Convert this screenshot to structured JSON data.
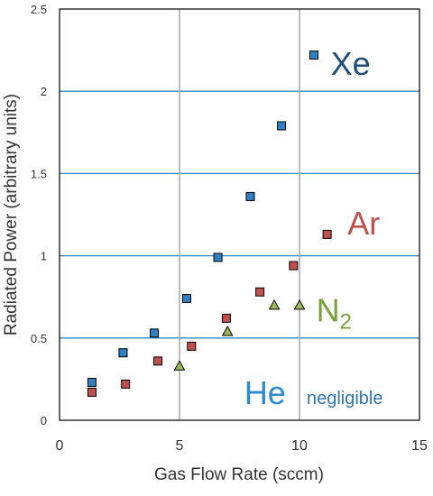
{
  "chart_data": {
    "type": "scatter",
    "xlabel": "Gas Flow Rate (sccm)",
    "ylabel": "Radiated Power (arbitrary units)",
    "xlim": [
      0,
      15
    ],
    "ylim": [
      0,
      2.5
    ],
    "x_ticks": [
      0,
      5,
      10,
      15
    ],
    "y_ticks": [
      0,
      0.5,
      1,
      1.5,
      2,
      2.5
    ],
    "x_tick_labels": [
      "0",
      "5",
      "10",
      "15"
    ],
    "y_tick_labels": [
      "0",
      "0.5",
      "1",
      "1.5",
      "2",
      "2.5"
    ],
    "vertical_gridlines_at": [
      5,
      10
    ],
    "horizontal_gridlines_at": [
      0.5,
      1,
      1.5,
      2
    ],
    "series": [
      {
        "name": "Xe",
        "marker": "square",
        "color": "#2f7fc1",
        "label_color": "#1f4e79",
        "label_at": [
          11.3,
          2.1
        ],
        "points": [
          [
            1.35,
            0.23
          ],
          [
            2.65,
            0.41
          ],
          [
            3.95,
            0.53
          ],
          [
            5.3,
            0.74
          ],
          [
            6.6,
            0.99
          ],
          [
            7.95,
            1.36
          ],
          [
            9.25,
            1.79
          ],
          [
            10.6,
            2.22
          ]
        ]
      },
      {
        "name": "Ar",
        "marker": "square",
        "color": "#c0504d",
        "label_color": "#c0504d",
        "label_at": [
          12.0,
          1.13
        ],
        "points": [
          [
            1.35,
            0.17
          ],
          [
            2.75,
            0.22
          ],
          [
            4.1,
            0.36
          ],
          [
            5.5,
            0.45
          ],
          [
            6.95,
            0.62
          ],
          [
            8.35,
            0.78
          ],
          [
            9.75,
            0.94
          ],
          [
            11.15,
            1.13
          ]
        ]
      },
      {
        "name": "N",
        "name_subscript": "2",
        "marker": "triangle",
        "color": "#9bbb59",
        "label_color": "#77a13b",
        "label_at": [
          10.7,
          0.6
        ],
        "points": [
          [
            5.0,
            0.33
          ],
          [
            7.0,
            0.54
          ],
          [
            8.95,
            0.7
          ],
          [
            10.0,
            0.7
          ]
        ]
      }
    ],
    "annotations": [
      {
        "text": "He",
        "color": "#2e8bd3",
        "at": [
          7.7,
          0.1
        ]
      },
      {
        "text": "negligible",
        "color": "#2e75b6",
        "at": [
          10.3,
          0.1
        ]
      }
    ]
  }
}
